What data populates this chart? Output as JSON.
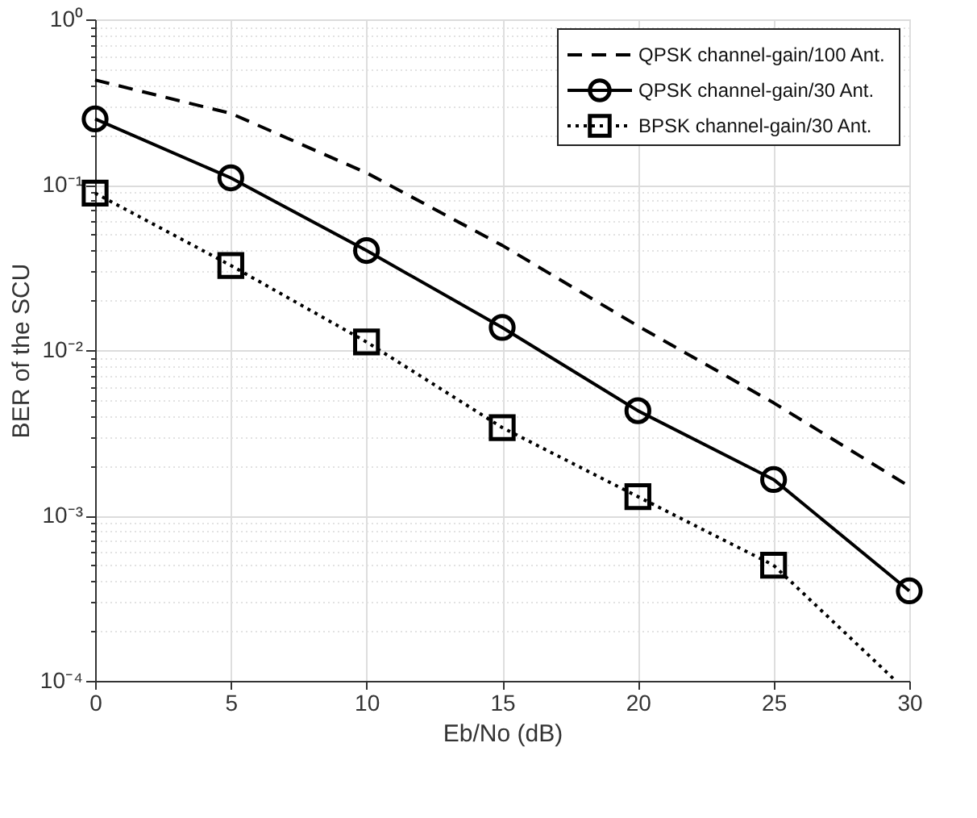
{
  "chart_data": {
    "type": "line",
    "xlabel": "Eb/No (dB)",
    "ylabel": "BER of the SCU",
    "log": "y",
    "grid": true,
    "legend": "top right",
    "x": [
      0,
      5,
      10,
      15,
      20,
      25,
      30
    ],
    "xlim": [
      0,
      30
    ],
    "xticks": [
      0,
      5,
      10,
      15,
      20,
      25,
      30
    ],
    "ylim": [
      0.0001,
      1
    ],
    "yticks": [
      {
        "value": 0.0001,
        "label": "10⁻⁴"
      },
      {
        "value": 0.0002,
        "label": null
      },
      {
        "value": 0.0003,
        "label": null
      },
      {
        "value": 0.0004,
        "label": null
      },
      {
        "value": 0.0005,
        "label": null
      },
      {
        "value": 0.0006,
        "label": null
      },
      {
        "value": 0.0007,
        "label": null
      },
      {
        "value": 0.0008,
        "label": null
      },
      {
        "value": 0.0009,
        "label": null
      },
      {
        "value": 0.001,
        "label": "10⁻³"
      },
      {
        "value": 0.002,
        "label": null
      },
      {
        "value": 0.003,
        "label": null
      },
      {
        "value": 0.004,
        "label": null
      },
      {
        "value": 0.005,
        "label": null
      },
      {
        "value": 0.006,
        "label": null
      },
      {
        "value": 0.007,
        "label": null
      },
      {
        "value": 0.008,
        "label": null
      },
      {
        "value": 0.009,
        "label": null
      },
      {
        "value": 0.01,
        "label": "10⁻²"
      },
      {
        "value": 0.02,
        "label": null
      },
      {
        "value": 0.03,
        "label": null
      },
      {
        "value": 0.04,
        "label": null
      },
      {
        "value": 0.05,
        "label": null
      },
      {
        "value": 0.06,
        "label": null
      },
      {
        "value": 0.07,
        "label": null
      },
      {
        "value": 0.08,
        "label": null
      },
      {
        "value": 0.09,
        "label": null
      },
      {
        "value": 0.1,
        "label": "10⁻¹"
      },
      {
        "value": 0.2,
        "label": null
      },
      {
        "value": 0.3,
        "label": null
      },
      {
        "value": 0.4,
        "label": null
      },
      {
        "value": 0.5,
        "label": null
      },
      {
        "value": 0.6,
        "label": null
      },
      {
        "value": 0.7,
        "label": null
      },
      {
        "value": 0.8,
        "label": null
      },
      {
        "value": 0.9,
        "label": null
      },
      {
        "value": 1,
        "label": "10⁰"
      }
    ],
    "series": [
      {
        "name": "QPSK channel-gain/100 Ant.",
        "color": "#000000",
        "line_style": "dashed",
        "marker": "none",
        "values": [
          0.43,
          0.27,
          0.118,
          0.043,
          0.014,
          0.0048,
          0.0015
        ]
      },
      {
        "name": "QPSK channel-gain/30 Ant.",
        "color": "#000000",
        "line_style": "solid",
        "marker": "circle",
        "values": [
          0.25,
          0.11,
          0.04,
          0.0137,
          0.0043,
          0.00165,
          0.00035
        ]
      },
      {
        "name": "BPSK channel-gain/30 Ant.",
        "color": "#000000",
        "line_style": "dotted",
        "marker": "square",
        "x": [
          0,
          5,
          10,
          15,
          20,
          25
        ],
        "values": [
          0.089,
          0.0325,
          0.0112,
          0.0034,
          0.0013,
          0.0005
        ]
      },
      {
        "color": "#000000",
        "line_style": "dotted",
        "marker": "none",
        "x": [
          25,
          29.5
        ],
        "values": [
          0.0005,
          0.0001
        ]
      }
    ]
  }
}
